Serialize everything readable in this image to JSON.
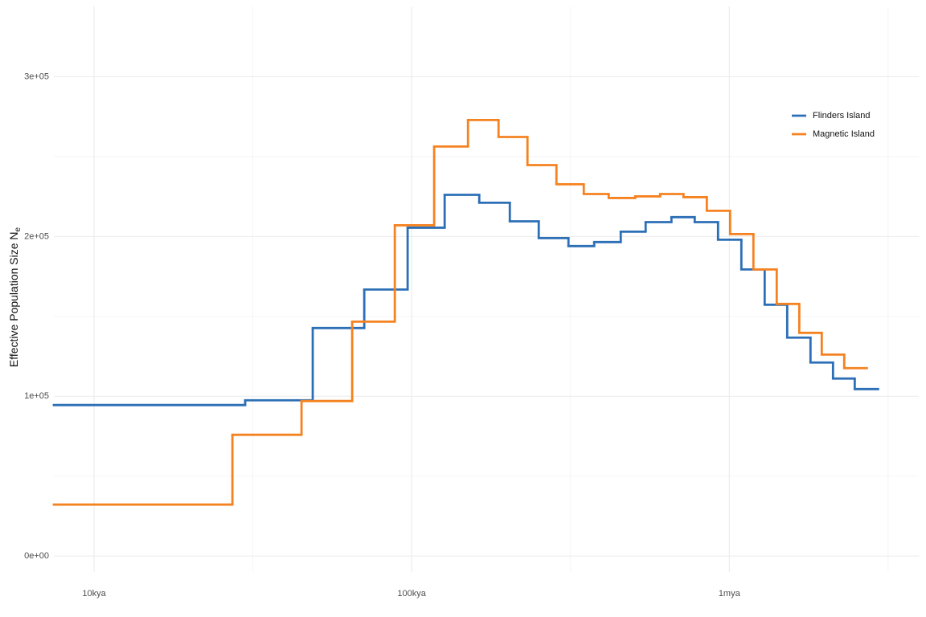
{
  "chart_data": {
    "type": "step",
    "y_label": "Effective Population Size N",
    "y_label_subscript": "e",
    "log_x": true,
    "grid": true,
    "legend_position": "top-right",
    "xlim": [
      7470,
      3950000
    ],
    "xticks": [
      {
        "value": 10000,
        "label": "10kya"
      },
      {
        "value": 100000,
        "label": "100kya"
      },
      {
        "value": 1000000,
        "label": "1mya"
      }
    ],
    "x_minor_ticks": [
      31623,
      316228,
      3162278
    ],
    "ylim": [
      -10000,
      344000
    ],
    "yticks": [
      {
        "value": 0,
        "label": "0e+00"
      },
      {
        "value": 100000,
        "label": "1e+05"
      },
      {
        "value": 200000,
        "label": "2e+05"
      },
      {
        "value": 300000,
        "label": "3e+05"
      }
    ],
    "y_minor_ticks": [
      50000,
      150000,
      250000
    ],
    "series": [
      {
        "name": "Flinders Island",
        "color": "#2c6fb6",
        "x": [
          7470,
          29900,
          48800,
          70900,
          97100,
          127000,
          163200,
          203700,
          251200,
          311600,
          375500,
          455200,
          545300,
          657300,
          778300,
          921700,
          1091400,
          1292500,
          1521700,
          1801700,
          2121300,
          2483000,
          2940000
        ],
        "values": [
          94500,
          97500,
          142700,
          166800,
          205500,
          226100,
          221100,
          209500,
          199000,
          194000,
          196500,
          203000,
          209000,
          212100,
          209000,
          198000,
          179400,
          157300,
          136700,
          121100,
          111100,
          104500,
          104500
        ]
      },
      {
        "name": "Magnetic Island",
        "color": "#f58220",
        "x": [
          7470,
          27260,
          44990,
          64960,
          88480,
          117700,
          150400,
          187700,
          231500,
          285600,
          348200,
          417200,
          505500,
          605900,
          717400,
          849600,
          1005800,
          1191000,
          1410400,
          1661000,
          1955000,
          2301000,
          2710000
        ],
        "values": [
          32200,
          75900,
          97000,
          146700,
          207000,
          256300,
          272900,
          262300,
          244700,
          232700,
          226600,
          224100,
          225100,
          226600,
          224600,
          216100,
          201500,
          179400,
          157800,
          139700,
          126100,
          117600,
          117600
        ]
      }
    ]
  }
}
